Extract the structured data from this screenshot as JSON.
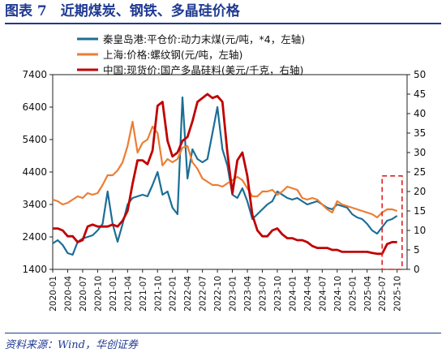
{
  "header": {
    "title": "图表 7　近期煤炭、钢铁、多晶硅价格"
  },
  "footer": {
    "source": "资料来源：Wind，华创证券"
  },
  "chart_data": {
    "type": "line",
    "title": "",
    "ylim_left": [
      1400,
      7400
    ],
    "yticks_left": [
      1400,
      2400,
      3400,
      4400,
      5400,
      6400,
      7400
    ],
    "ylim_right": [
      0,
      50
    ],
    "yticks_right": [
      0,
      5,
      10,
      15,
      20,
      25,
      30,
      35,
      40,
      45,
      50
    ],
    "x_tick_labels": [
      "2020-01",
      "2020-04",
      "2020-07",
      "2020-10",
      "2021-01",
      "2021-04",
      "2021-07",
      "2021-10",
      "2022-01",
      "2022-04",
      "2022-07",
      "2022-10",
      "2023-01",
      "2023-04",
      "2023-07",
      "2023-10",
      "2024-01",
      "2024-04",
      "2024-07",
      "2024-10",
      "2025-01",
      "2025-04",
      "2025-07",
      "2025-10"
    ],
    "legend_position": "top-left inside",
    "highlight": {
      "x_start": "2025-07",
      "x_end": "2025-11",
      "color": "#e02020",
      "style": "dashed"
    },
    "series": [
      {
        "name": "秦皇岛港:平仓价:动力末煤(元/吨，*4，左轴)",
        "axis": "left",
        "color": "#1b6e96",
        "x": [
          "2020-01",
          "2020-02",
          "2020-03",
          "2020-04",
          "2020-05",
          "2020-06",
          "2020-07",
          "2020-08",
          "2020-09",
          "2020-10",
          "2020-11",
          "2020-12",
          "2021-01",
          "2021-02",
          "2021-03",
          "2021-04",
          "2021-05",
          "2021-06",
          "2021-07",
          "2021-08",
          "2021-09",
          "2021-10",
          "2021-11",
          "2021-12",
          "2022-01",
          "2022-02",
          "2022-03",
          "2022-04",
          "2022-05",
          "2022-06",
          "2022-07",
          "2022-08",
          "2022-09",
          "2022-10",
          "2022-11",
          "2022-12",
          "2023-01",
          "2023-02",
          "2023-03",
          "2023-04",
          "2023-05",
          "2023-06",
          "2023-07",
          "2023-08",
          "2023-09",
          "2023-10",
          "2023-11",
          "2023-12",
          "2024-01",
          "2024-02",
          "2024-03",
          "2024-04",
          "2024-05",
          "2024-06",
          "2024-07",
          "2024-08",
          "2024-09",
          "2024-10",
          "2024-11",
          "2024-12",
          "2025-01",
          "2025-02",
          "2025-03",
          "2025-04",
          "2025-05",
          "2025-06",
          "2025-07",
          "2025-08",
          "2025-09",
          "2025-10"
        ],
        "values": [
          2200,
          2300,
          2150,
          1900,
          1850,
          2250,
          2350,
          2400,
          2450,
          2600,
          2800,
          3800,
          2800,
          2250,
          2800,
          3400,
          3600,
          3650,
          3700,
          3650,
          4000,
          4400,
          3700,
          3800,
          3300,
          3100,
          6700,
          4200,
          5100,
          4800,
          4700,
          4800,
          5600,
          6400,
          5100,
          4600,
          3700,
          3600,
          3900,
          3500,
          2950,
          3100,
          3250,
          3400,
          3500,
          3800,
          3700,
          3600,
          3550,
          3600,
          3500,
          3400,
          3450,
          3500,
          3400,
          3300,
          3250,
          3400,
          3350,
          3300,
          3100,
          3000,
          2950,
          2800,
          2600,
          2500,
          2700,
          2900,
          2950,
          3050
        ]
      },
      {
        "name": "上海:价格:螺纹钢(元/吨，左轴)",
        "axis": "left",
        "color": "#ed7d31",
        "x": [
          "2020-01",
          "2020-02",
          "2020-03",
          "2020-04",
          "2020-05",
          "2020-06",
          "2020-07",
          "2020-08",
          "2020-09",
          "2020-10",
          "2020-11",
          "2020-12",
          "2021-01",
          "2021-02",
          "2021-03",
          "2021-04",
          "2021-05",
          "2021-06",
          "2021-07",
          "2021-08",
          "2021-09",
          "2021-10",
          "2021-11",
          "2021-12",
          "2022-01",
          "2022-02",
          "2022-03",
          "2022-04",
          "2022-05",
          "2022-06",
          "2022-07",
          "2022-08",
          "2022-09",
          "2022-10",
          "2022-11",
          "2022-12",
          "2023-01",
          "2023-02",
          "2023-03",
          "2023-04",
          "2023-05",
          "2023-06",
          "2023-07",
          "2023-08",
          "2023-09",
          "2023-10",
          "2023-11",
          "2023-12",
          "2024-01",
          "2024-02",
          "2024-03",
          "2024-04",
          "2024-05",
          "2024-06",
          "2024-07",
          "2024-08",
          "2024-09",
          "2024-10",
          "2024-11",
          "2024-12",
          "2025-01",
          "2025-02",
          "2025-03",
          "2025-04",
          "2025-05",
          "2025-06",
          "2025-07",
          "2025-08",
          "2025-09",
          "2025-10"
        ],
        "values": [
          3550,
          3500,
          3400,
          3450,
          3550,
          3650,
          3600,
          3750,
          3700,
          3750,
          4000,
          4300,
          4300,
          4450,
          4700,
          5200,
          5950,
          5000,
          5300,
          5400,
          5800,
          5600,
          4600,
          4800,
          4700,
          4800,
          5150,
          5200,
          4700,
          4500,
          4200,
          4100,
          4000,
          4000,
          3950,
          4050,
          4150,
          4250,
          4150,
          3900,
          3650,
          3650,
          3800,
          3800,
          3850,
          3700,
          3800,
          3950,
          3900,
          3850,
          3600,
          3550,
          3600,
          3550,
          3400,
          3250,
          3150,
          3500,
          3400,
          3350,
          3300,
          3250,
          3200,
          3150,
          3100,
          3000,
          3150,
          3250,
          3250,
          3200
        ]
      },
      {
        "name": "中国:现货价:国产多晶硅料(美元/千克，右轴)",
        "axis": "right",
        "color": "#c00000",
        "x": [
          "2020-01",
          "2020-02",
          "2020-03",
          "2020-04",
          "2020-05",
          "2020-06",
          "2020-07",
          "2020-08",
          "2020-09",
          "2020-10",
          "2020-11",
          "2020-12",
          "2021-01",
          "2021-02",
          "2021-03",
          "2021-04",
          "2021-05",
          "2021-06",
          "2021-07",
          "2021-08",
          "2021-09",
          "2021-10",
          "2021-11",
          "2021-12",
          "2022-01",
          "2022-02",
          "2022-03",
          "2022-04",
          "2022-05",
          "2022-06",
          "2022-07",
          "2022-08",
          "2022-09",
          "2022-10",
          "2022-11",
          "2022-12",
          "2023-01",
          "2023-02",
          "2023-03",
          "2023-04",
          "2023-05",
          "2023-06",
          "2023-07",
          "2023-08",
          "2023-09",
          "2023-10",
          "2023-11",
          "2023-12",
          "2024-01",
          "2024-02",
          "2024-03",
          "2024-04",
          "2024-05",
          "2024-06",
          "2024-07",
          "2024-08",
          "2024-09",
          "2024-10",
          "2024-11",
          "2024-12",
          "2025-01",
          "2025-02",
          "2025-03",
          "2025-04",
          "2025-05",
          "2025-06",
          "2025-07",
          "2025-08",
          "2025-09",
          "2025-10"
        ],
        "values": [
          10.5,
          10.5,
          10,
          8.5,
          8.5,
          7,
          7.5,
          11,
          11.5,
          11,
          11,
          11,
          11.5,
          11,
          12.5,
          15,
          22,
          28,
          28,
          27,
          30.5,
          42,
          43,
          33,
          29,
          30,
          33,
          34,
          38,
          43,
          44,
          45,
          44,
          44.5,
          43,
          30,
          19.5,
          28,
          30,
          24,
          14,
          10,
          8.5,
          8.5,
          10,
          10.5,
          9,
          8,
          8,
          7.5,
          7.5,
          7,
          6,
          5.5,
          5.5,
          5.5,
          5,
          5,
          4.5,
          4.5,
          4.5,
          4.5,
          4.5,
          4.5,
          4.2,
          4,
          4,
          6.5,
          7,
          7
        ]
      }
    ]
  }
}
